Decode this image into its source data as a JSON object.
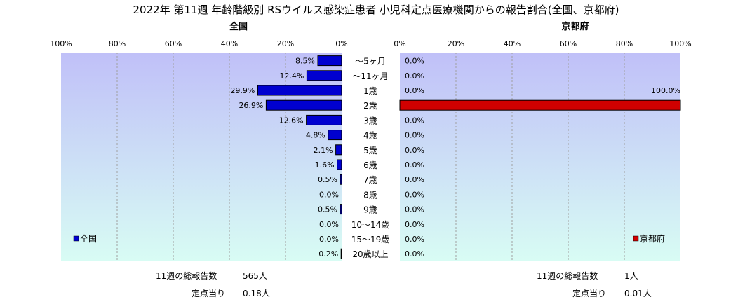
{
  "title": "2022年 第11週 年齢階級別 RSウイルス感染症患者 小児科定点医療機関からの報告割合(全国、京都府)",
  "colors": {
    "plot_bg_top": "#c0c0f8",
    "plot_bg_bottom": "#d8fcf4",
    "national_bar": "#0000d0",
    "kyoto_bar": "#d00000",
    "grid": "#a0a0a0"
  },
  "chart_data": [
    {
      "type": "bar",
      "orientation": "horizontal",
      "direction": "right-to-left",
      "title": "全国",
      "categories": [
        "〜5ヶ月",
        "〜11ヶ月",
        "1歳",
        "2歳",
        "3歳",
        "4歳",
        "5歳",
        "6歳",
        "7歳",
        "8歳",
        "9歳",
        "10〜14歳",
        "15〜19歳",
        "20歳以上"
      ],
      "values": [
        8.5,
        12.4,
        29.9,
        26.9,
        12.6,
        4.8,
        2.1,
        1.6,
        0.5,
        0.0,
        0.5,
        0.0,
        0.0,
        0.2
      ],
      "labels": [
        "8.5%",
        "12.4%",
        "29.9%",
        "26.9%",
        "12.6%",
        "4.8%",
        "2.1%",
        "1.6%",
        "0.5%",
        "0.0%",
        "0.5%",
        "0.0%",
        "0.0%",
        "0.2%"
      ],
      "series": [
        {
          "name": "全国"
        }
      ],
      "xlim": [
        0,
        100
      ],
      "ticks": [
        "100%",
        "80%",
        "60%",
        "40%",
        "20%",
        "0%"
      ],
      "legend": "bottom-left",
      "grid": true
    },
    {
      "type": "bar",
      "orientation": "horizontal",
      "direction": "left-to-right",
      "title": "京都府",
      "categories": [
        "〜5ヶ月",
        "〜11ヶ月",
        "1歳",
        "2歳",
        "3歳",
        "4歳",
        "5歳",
        "6歳",
        "7歳",
        "8歳",
        "9歳",
        "10〜14歳",
        "15〜19歳",
        "20歳以上"
      ],
      "values": [
        0.0,
        0.0,
        0.0,
        100.0,
        0.0,
        0.0,
        0.0,
        0.0,
        0.0,
        0.0,
        0.0,
        0.0,
        0.0,
        0.0
      ],
      "labels": [
        "0.0%",
        "0.0%",
        "0.0%",
        "100.0%",
        "0.0%",
        "0.0%",
        "0.0%",
        "0.0%",
        "0.0%",
        "0.0%",
        "0.0%",
        "0.0%",
        "0.0%",
        "0.0%"
      ],
      "series": [
        {
          "name": "京都府"
        }
      ],
      "xlim": [
        0,
        100
      ],
      "ticks": [
        "0%",
        "20%",
        "40%",
        "60%",
        "80%",
        "100%"
      ],
      "legend": "bottom-right",
      "grid": true
    }
  ],
  "summary": {
    "national": {
      "total_label": "11週の総報告数",
      "total_value": "565人",
      "per_site_label": "定点当り",
      "per_site_value": "0.18人"
    },
    "kyoto": {
      "total_label": "11週の総報告数",
      "total_value": "1人",
      "per_site_label": "定点当り",
      "per_site_value": "0.01人"
    }
  }
}
